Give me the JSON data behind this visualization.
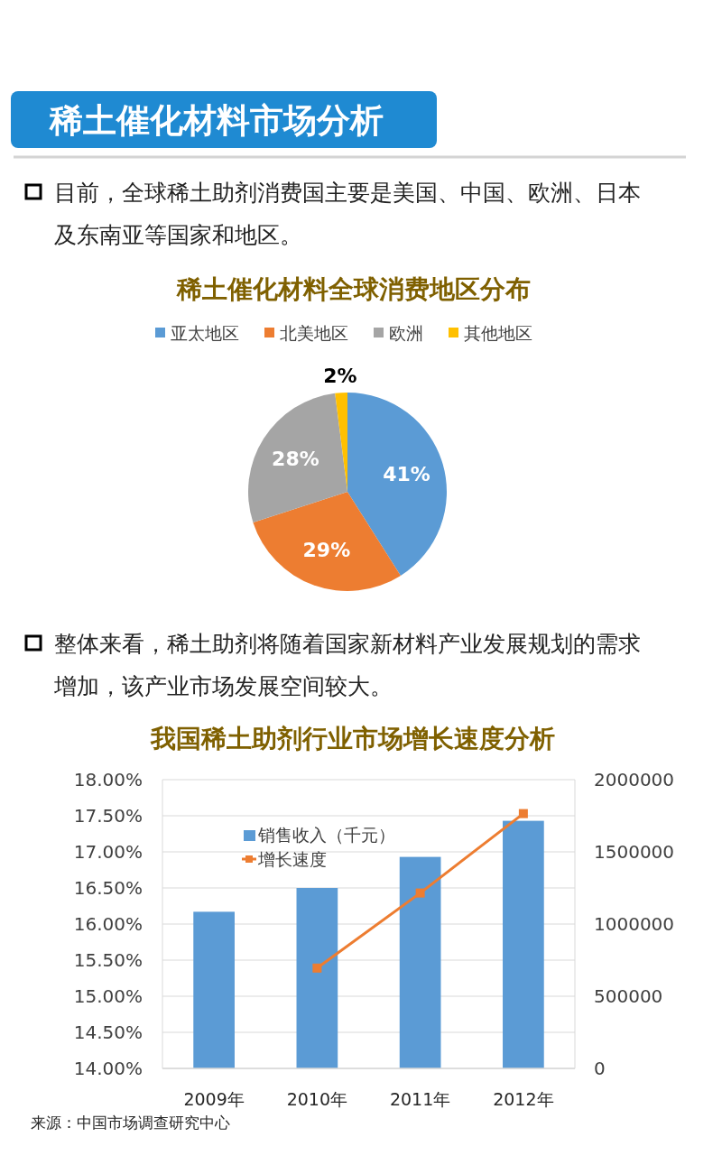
{
  "chart_data": [
    {
      "type": "other",
      "title": "稀土催化材料市场分析",
      "annotations": [
        "目前，全球稀土助剂消费国主要是美国、中国、欧洲、日本及东南亚等国家和地区。"
      ]
    },
    {
      "type": "pie",
      "title": "稀土催化材料全球消费地区分布",
      "categories": [
        "亚太地区",
        "北美地区",
        "欧洲",
        "其他地区"
      ],
      "values": [
        41,
        29,
        28,
        2
      ],
      "colors": [
        "#5b9bd5",
        "#ed7d31",
        "#a5a5a5",
        "#ffc000"
      ],
      "value_labels": [
        "41%",
        "29%",
        "28%",
        "2%"
      ],
      "legend": "top"
    },
    {
      "type": "other",
      "annotations": [
        "整体来看，稀土助剂将随着国家新材料产业发展规划的需求增加，该产业市场发展空间较大。"
      ]
    },
    {
      "type": "bar",
      "title": "我国稀土助剂行业市场增长速度分析",
      "categories": [
        "2009年",
        "2010年",
        "2011年",
        "2012年"
      ],
      "series": [
        {
          "name": "销售收入（千元）",
          "type": "bar",
          "axis": "y2",
          "color": "#5b9bd5",
          "values": [
            1085000,
            1250000,
            1465000,
            1715000
          ]
        },
        {
          "name": "增长速度",
          "type": "line",
          "axis": "y",
          "color": "#ed7d31",
          "marker": "square",
          "values": [
            null,
            15.39,
            16.43,
            17.53
          ]
        }
      ],
      "ylim": [
        14,
        18
      ],
      "yticks": [
        {
          "value": 14,
          "label": "14.00%"
        },
        {
          "value": 14.5,
          "label": "14.50%"
        },
        {
          "value": 15,
          "label": "15.00%"
        },
        {
          "value": 15.5,
          "label": "15.50%"
        },
        {
          "value": 16,
          "label": "16.00%"
        },
        {
          "value": 16.5,
          "label": "16.50%"
        },
        {
          "value": 17,
          "label": "17.00%"
        },
        {
          "value": 17.5,
          "label": "17.50%"
        },
        {
          "value": 18,
          "label": "18.00%"
        }
      ],
      "y2lim": [
        0,
        2000000
      ],
      "y2ticks": [
        0,
        500000,
        1000000,
        1500000,
        2000000
      ],
      "grid": "y",
      "legend": "top left",
      "annotations": [
        "来源：中国市场调查研究中心"
      ]
    }
  ]
}
